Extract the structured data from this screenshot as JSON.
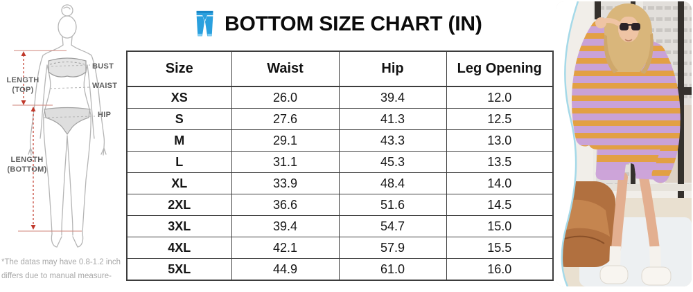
{
  "title": {
    "text": "BOTTOM SIZE CHART (IN)",
    "icon": "jeans-icon"
  },
  "diagram": {
    "length_top_line1": "LENGTH",
    "length_top_line2": "(TOP)",
    "length_bottom_line1": "LENGTH",
    "length_bottom_line2": "(BOTTOM)",
    "bust": "BUST",
    "waist": "WAIST",
    "hip": "HIP",
    "footnote_line1": "*The datas may have 0.8-1.2 inch",
    "footnote_line2": "differs due to manual measure-"
  },
  "size_table": {
    "columns": [
      "Size",
      "Waist",
      "Hip",
      "Leg Opening"
    ],
    "rows": [
      [
        "XS",
        "26.0",
        "39.4",
        "12.0"
      ],
      [
        "S",
        "27.6",
        "41.3",
        "12.5"
      ],
      [
        "M",
        "29.1",
        "43.3",
        "13.0"
      ],
      [
        "L",
        "31.1",
        "45.3",
        "13.5"
      ],
      [
        "XL",
        "33.9",
        "48.4",
        "14.0"
      ],
      [
        "2XL",
        "36.6",
        "51.6",
        "14.5"
      ],
      [
        "3XL",
        "39.4",
        "54.7",
        "15.0"
      ],
      [
        "4XL",
        "42.1",
        "57.9",
        "15.5"
      ],
      [
        "5XL",
        "44.9",
        "61.0",
        "16.0"
      ]
    ]
  },
  "photo": {
    "subject": "model wearing lilac and orange striped knit sweater and shorts"
  },
  "colors": {
    "title_icon_blue": "#2aa0de",
    "stripe_lilac": "#c9a2d7",
    "stripe_orange": "#e2a044",
    "shorts_lilac": "#cda4d9",
    "table_border": "#3c3c3c",
    "label_gray": "#5e5e5e",
    "footnote_gray": "#a8a8a8",
    "measure_red": "#c0392b"
  }
}
